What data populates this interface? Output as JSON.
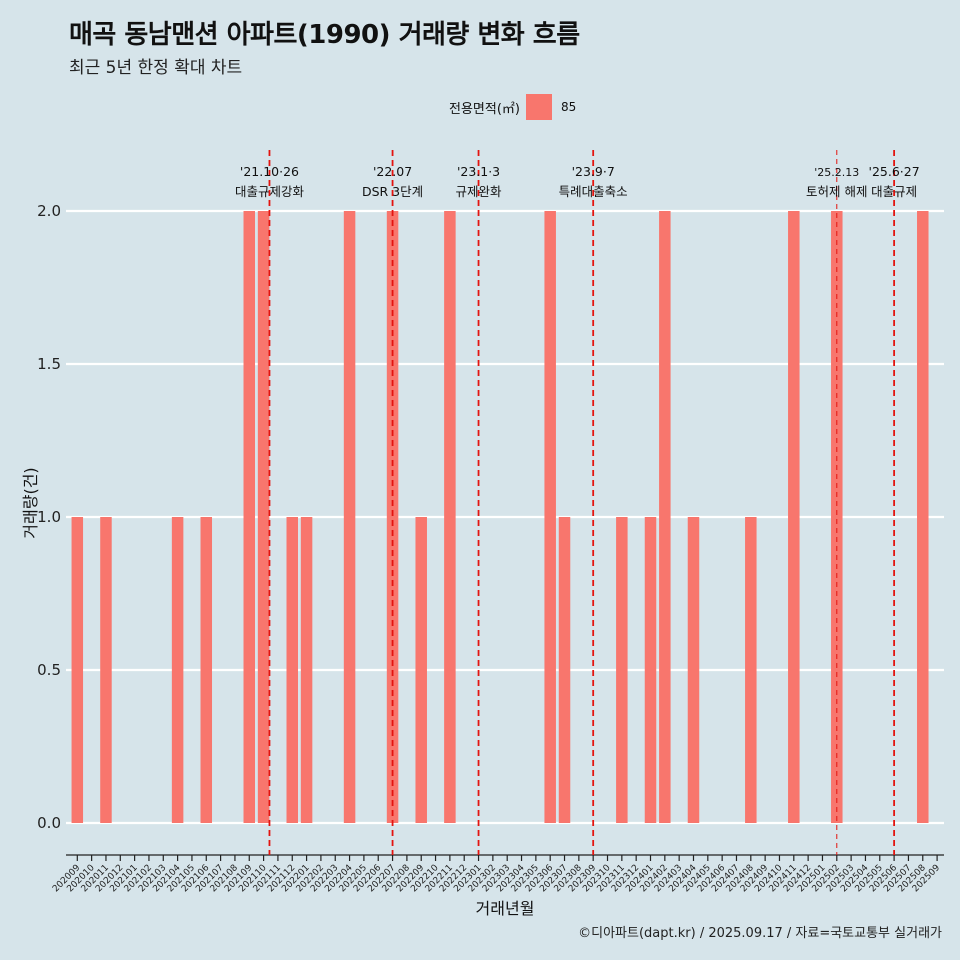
{
  "title": "매곡 동남맨션 아파트(1990) 거래량 변화 흐름",
  "subtitle": "최근 5년 한정 확대 차트",
  "legend": {
    "title": "전용면적(㎡)",
    "label": "85"
  },
  "caption": "©디아파트(dapt.kr) / 2025.09.17 / 자료=국토교통부 실거래가",
  "colors": {
    "background": "#d6e4ea",
    "bar": "#f8766d",
    "event_line": "#e3140f"
  },
  "chart_data": {
    "type": "bar",
    "xlabel": "거래년월",
    "ylabel": "거래량(건)",
    "ylim": [
      0,
      2
    ],
    "yticks": [
      "0.0",
      "0.5",
      "1.0",
      "1.5",
      "2.0"
    ],
    "grid": true,
    "legend_position": "top",
    "categories": [
      "202009",
      "202010",
      "202011",
      "202012",
      "202101",
      "202102",
      "202103",
      "202104",
      "202105",
      "202106",
      "202107",
      "202108",
      "202109",
      "202110",
      "202111",
      "202112",
      "202201",
      "202202",
      "202203",
      "202204",
      "202205",
      "202206",
      "202207",
      "202208",
      "202209",
      "202210",
      "202211",
      "202212",
      "202301",
      "202302",
      "202303",
      "202304",
      "202305",
      "202306",
      "202307",
      "202308",
      "202309",
      "202310",
      "202311",
      "202312",
      "202401",
      "202402",
      "202403",
      "202404",
      "202405",
      "202406",
      "202407",
      "202408",
      "202409",
      "202410",
      "202411",
      "202412",
      "202501",
      "202502",
      "202503",
      "202504",
      "202505",
      "202506",
      "202507",
      "202508",
      "202509"
    ],
    "series": [
      {
        "name": "85",
        "values": [
          1,
          0,
          1,
          0,
          0,
          0,
          0,
          1,
          0,
          1,
          0,
          0,
          2,
          2,
          0,
          1,
          1,
          0,
          0,
          2,
          0,
          0,
          2,
          0,
          1,
          0,
          2,
          0,
          0,
          0,
          0,
          0,
          0,
          2,
          1,
          0,
          0,
          0,
          1,
          0,
          1,
          2,
          0,
          1,
          0,
          0,
          0,
          1,
          0,
          0,
          2,
          0,
          0,
          2,
          0,
          0,
          0,
          0,
          0,
          2,
          0
        ]
      }
    ],
    "events": [
      {
        "date": "'21.10·26",
        "label": "대출규제강화",
        "month": "202110",
        "offset": 0.41
      },
      {
        "date": "'22.07",
        "label": "DSR 3단계",
        "month": "202207",
        "offset": 0.0
      },
      {
        "date": "'23.1·3",
        "label": "규제완화",
        "month": "202301",
        "offset": 0.0
      },
      {
        "date": "'23.9·7",
        "label": "특례대출축소",
        "month": "202309",
        "offset": 0.0
      },
      {
        "date": "'25.2.13",
        "label": "토허제 해제",
        "month": "202502",
        "offset": 0.0,
        "style": "thin"
      },
      {
        "date": "'25.6·27",
        "label": "대출규제",
        "month": "202506",
        "offset": 0.0
      }
    ]
  }
}
